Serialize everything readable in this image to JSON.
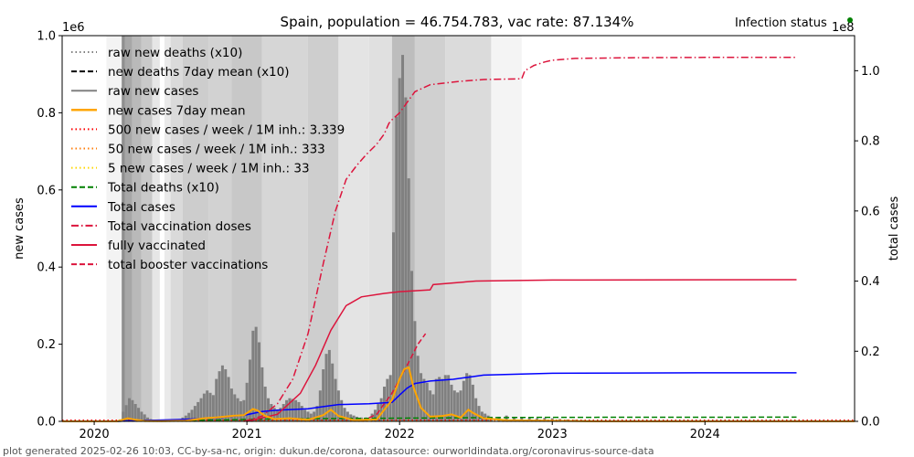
{
  "chart_data": {
    "type": "line",
    "title": "Spain, population = 46.754.783, vac rate: 87.134%",
    "ylabel_left": "new cases",
    "ylabel_right": "total cases",
    "left_scale_label": "1e6",
    "right_scale_label": "1e8",
    "ylim_left": [
      0,
      1000000
    ],
    "ylim_right": [
      0,
      110000000
    ],
    "xlim_years": [
      2019.79,
      2024.98
    ],
    "x_ticks": [
      2020,
      2021,
      2022,
      2023,
      2024
    ],
    "x_tick_labels": [
      "2020",
      "2021",
      "2022",
      "2023",
      "2024"
    ],
    "y_left_ticks": [
      0.0,
      0.2,
      0.4,
      0.6,
      0.8,
      1.0
    ],
    "y_left_tick_labels": [
      "0.0",
      "0.2",
      "0.4",
      "0.6",
      "0.8",
      "1.0"
    ],
    "y_right_ticks": [
      0.0,
      0.2,
      0.4,
      0.6,
      0.8,
      1.0
    ],
    "y_right_tick_labels": [
      "0.0",
      "0.2",
      "0.4",
      "0.6",
      "0.8",
      "1.0"
    ],
    "infection_status_label": "Infection status",
    "infection_status_color": "#008000",
    "legend": [
      {
        "label": "raw new deaths (x10)",
        "color": "#808080",
        "style": "dotted"
      },
      {
        "label": "new deaths 7day mean (x10)",
        "color": "#000000",
        "style": "dashed"
      },
      {
        "label": "raw new cases",
        "color": "#808080",
        "style": "solid"
      },
      {
        "label": "new cases 7day mean",
        "color": "#ffa500",
        "style": "solid"
      },
      {
        "label": "500 new cases / week / 1M inh.: 3.339",
        "color": "#ff0000",
        "style": "dotted"
      },
      {
        "label": "50 new cases / week / 1M inh.: 333",
        "color": "#ff7f0e",
        "style": "dotted"
      },
      {
        "label": "5 new cases / week / 1M inh.: 33",
        "color": "#ffd700",
        "style": "dotted"
      },
      {
        "label": "Total deaths (x10)",
        "color": "#008000",
        "style": "dashed"
      },
      {
        "label": "Total cases",
        "color": "#0000ff",
        "style": "solid"
      },
      {
        "label": "Total vaccination doses",
        "color": "#dc143c",
        "style": "dashdot"
      },
      {
        "label": "fully vaccinated",
        "color": "#dc143c",
        "style": "solid"
      },
      {
        "label": "total booster vaccinations",
        "color": "#dc143c",
        "style": "dashed"
      }
    ],
    "raw_new_cases_weekly": [
      [
        2020.17,
        5000
      ],
      [
        2020.19,
        25000
      ],
      [
        2020.21,
        42000
      ],
      [
        2020.23,
        60000
      ],
      [
        2020.25,
        55000
      ],
      [
        2020.27,
        45000
      ],
      [
        2020.29,
        35000
      ],
      [
        2020.31,
        25000
      ],
      [
        2020.33,
        18000
      ],
      [
        2020.35,
        10000
      ],
      [
        2020.37,
        6000
      ],
      [
        2020.4,
        3000
      ],
      [
        2020.44,
        2000
      ],
      [
        2020.48,
        2000
      ],
      [
        2020.52,
        3000
      ],
      [
        2020.56,
        6000
      ],
      [
        2020.58,
        10000
      ],
      [
        2020.6,
        15000
      ],
      [
        2020.62,
        22000
      ],
      [
        2020.64,
        30000
      ],
      [
        2020.66,
        40000
      ],
      [
        2020.68,
        50000
      ],
      [
        2020.7,
        60000
      ],
      [
        2020.72,
        72000
      ],
      [
        2020.74,
        80000
      ],
      [
        2020.76,
        74000
      ],
      [
        2020.78,
        68000
      ],
      [
        2020.8,
        110000
      ],
      [
        2020.82,
        130000
      ],
      [
        2020.84,
        145000
      ],
      [
        2020.86,
        135000
      ],
      [
        2020.88,
        115000
      ],
      [
        2020.9,
        85000
      ],
      [
        2020.92,
        70000
      ],
      [
        2020.94,
        60000
      ],
      [
        2020.96,
        52000
      ],
      [
        2020.98,
        55000
      ],
      [
        2021.0,
        100000
      ],
      [
        2021.02,
        160000
      ],
      [
        2021.04,
        235000
      ],
      [
        2021.06,
        245000
      ],
      [
        2021.08,
        205000
      ],
      [
        2021.1,
        140000
      ],
      [
        2021.12,
        90000
      ],
      [
        2021.14,
        60000
      ],
      [
        2021.16,
        45000
      ],
      [
        2021.18,
        35000
      ],
      [
        2021.2,
        30000
      ],
      [
        2021.22,
        35000
      ],
      [
        2021.24,
        45000
      ],
      [
        2021.26,
        55000
      ],
      [
        2021.28,
        60000
      ],
      [
        2021.3,
        58000
      ],
      [
        2021.32,
        55000
      ],
      [
        2021.34,
        50000
      ],
      [
        2021.36,
        40000
      ],
      [
        2021.38,
        30000
      ],
      [
        2021.4,
        25000
      ],
      [
        2021.42,
        20000
      ],
      [
        2021.44,
        25000
      ],
      [
        2021.46,
        40000
      ],
      [
        2021.48,
        80000
      ],
      [
        2021.5,
        135000
      ],
      [
        2021.52,
        175000
      ],
      [
        2021.54,
        185000
      ],
      [
        2021.56,
        150000
      ],
      [
        2021.58,
        110000
      ],
      [
        2021.6,
        80000
      ],
      [
        2021.62,
        55000
      ],
      [
        2021.64,
        35000
      ],
      [
        2021.66,
        25000
      ],
      [
        2021.68,
        18000
      ],
      [
        2021.7,
        15000
      ],
      [
        2021.72,
        12000
      ],
      [
        2021.75,
        10000
      ],
      [
        2021.78,
        10000
      ],
      [
        2021.82,
        20000
      ],
      [
        2021.84,
        30000
      ],
      [
        2021.86,
        45000
      ],
      [
        2021.88,
        60000
      ],
      [
        2021.9,
        90000
      ],
      [
        2021.92,
        110000
      ],
      [
        2021.94,
        120000
      ],
      [
        2021.96,
        490000
      ],
      [
        2021.98,
        790000
      ],
      [
        2022.0,
        890000
      ],
      [
        2022.02,
        950000
      ],
      [
        2022.04,
        840000
      ],
      [
        2022.06,
        630000
      ],
      [
        2022.08,
        390000
      ],
      [
        2022.1,
        260000
      ],
      [
        2022.12,
        170000
      ],
      [
        2022.14,
        125000
      ],
      [
        2022.16,
        110000
      ],
      [
        2022.18,
        100000
      ],
      [
        2022.2,
        80000
      ],
      [
        2022.22,
        70000
      ],
      [
        2022.24,
        110000
      ],
      [
        2022.26,
        115000
      ],
      [
        2022.28,
        110000
      ],
      [
        2022.3,
        120000
      ],
      [
        2022.32,
        120000
      ],
      [
        2022.34,
        95000
      ],
      [
        2022.36,
        80000
      ],
      [
        2022.38,
        75000
      ],
      [
        2022.4,
        80000
      ],
      [
        2022.42,
        105000
      ],
      [
        2022.44,
        125000
      ],
      [
        2022.46,
        120000
      ],
      [
        2022.48,
        95000
      ],
      [
        2022.5,
        60000
      ],
      [
        2022.52,
        40000
      ],
      [
        2022.54,
        25000
      ],
      [
        2022.56,
        20000
      ],
      [
        2022.58,
        15000
      ],
      [
        2022.6,
        12000
      ],
      [
        2022.65,
        12000
      ],
      [
        2022.7,
        15000
      ],
      [
        2022.75,
        12000
      ],
      [
        2022.8,
        10000
      ],
      [
        2022.85,
        10000
      ],
      [
        2022.9,
        8000
      ],
      [
        2022.95,
        9000
      ],
      [
        2023.0,
        8000
      ],
      [
        2023.05,
        6000
      ],
      [
        2023.1,
        5000
      ],
      [
        2023.15,
        4000
      ],
      [
        2023.2,
        3000
      ],
      [
        2023.25,
        2000
      ]
    ],
    "new_cases_7day_mean": [
      [
        2019.79,
        0
      ],
      [
        2020.15,
        0
      ],
      [
        2020.22,
        8000
      ],
      [
        2020.27,
        4000
      ],
      [
        2020.33,
        1000
      ],
      [
        2020.45,
        500
      ],
      [
        2020.6,
        2000
      ],
      [
        2020.72,
        8000
      ],
      [
        2020.8,
        10000
      ],
      [
        2020.9,
        14000
      ],
      [
        2020.98,
        16000
      ],
      [
        2021.04,
        32000
      ],
      [
        2021.07,
        28000
      ],
      [
        2021.12,
        14000
      ],
      [
        2021.18,
        6000
      ],
      [
        2021.28,
        8000
      ],
      [
        2021.4,
        4000
      ],
      [
        2021.5,
        16000
      ],
      [
        2021.55,
        30000
      ],
      [
        2021.6,
        14000
      ],
      [
        2021.7,
        3000
      ],
      [
        2021.85,
        5000
      ],
      [
        2021.95,
        55000
      ],
      [
        2022.0,
        110000
      ],
      [
        2022.03,
        135000
      ],
      [
        2022.06,
        140000
      ],
      [
        2022.09,
        90000
      ],
      [
        2022.14,
        35000
      ],
      [
        2022.2,
        12000
      ],
      [
        2022.28,
        14000
      ],
      [
        2022.34,
        18000
      ],
      [
        2022.4,
        10000
      ],
      [
        2022.45,
        30000
      ],
      [
        2022.48,
        22000
      ],
      [
        2022.55,
        8000
      ],
      [
        2022.7,
        3000
      ],
      [
        2023.0,
        1500
      ],
      [
        2023.3,
        0
      ],
      [
        2024.98,
        0
      ]
    ],
    "total_cases": [
      [
        2020.15,
        0
      ],
      [
        2020.25,
        200000
      ],
      [
        2020.4,
        300000
      ],
      [
        2020.6,
        600000
      ],
      [
        2020.8,
        1000000
      ],
      [
        2021.0,
        1900000
      ],
      [
        2021.1,
        2800000
      ],
      [
        2021.2,
        3200000
      ],
      [
        2021.4,
        3600000
      ],
      [
        2021.5,
        4200000
      ],
      [
        2021.6,
        4800000
      ],
      [
        2021.8,
        5000000
      ],
      [
        2021.95,
        5400000
      ],
      [
        2022.0,
        7500000
      ],
      [
        2022.05,
        9500000
      ],
      [
        2022.1,
        10800000
      ],
      [
        2022.2,
        11500000
      ],
      [
        2022.35,
        12000000
      ],
      [
        2022.45,
        12600000
      ],
      [
        2022.55,
        13200000
      ],
      [
        2022.8,
        13500000
      ],
      [
        2023.0,
        13700000
      ],
      [
        2023.5,
        13800000
      ],
      [
        2024.0,
        13850000
      ],
      [
        2024.6,
        13850000
      ]
    ],
    "total_deaths_x10": [
      [
        2020.15,
        0
      ],
      [
        2020.3,
        250000
      ],
      [
        2020.8,
        400000
      ],
      [
        2021.2,
        700000
      ],
      [
        2021.6,
        800000
      ],
      [
        2022.0,
        900000
      ],
      [
        2022.5,
        1050000
      ],
      [
        2023.0,
        1150000
      ],
      [
        2024.6,
        1200000
      ]
    ],
    "total_vaccination_doses": [
      [
        2020.98,
        0
      ],
      [
        2021.1,
        1500000
      ],
      [
        2021.2,
        5000000
      ],
      [
        2021.3,
        12000000
      ],
      [
        2021.4,
        25000000
      ],
      [
        2021.5,
        45000000
      ],
      [
        2021.58,
        60000000
      ],
      [
        2021.65,
        69000000
      ],
      [
        2021.72,
        73000000
      ],
      [
        2021.78,
        76000000
      ],
      [
        2021.85,
        79000000
      ],
      [
        2021.9,
        82000000
      ],
      [
        2021.93,
        85000000
      ],
      [
        2021.95,
        86000000
      ],
      [
        2022.0,
        88000000
      ],
      [
        2022.05,
        91000000
      ],
      [
        2022.1,
        94000000
      ],
      [
        2022.2,
        96000000
      ],
      [
        2022.4,
        97000000
      ],
      [
        2022.55,
        97500000
      ],
      [
        2022.8,
        97700000
      ],
      [
        2022.82,
        100000000
      ],
      [
        2022.88,
        101500000
      ],
      [
        2022.95,
        102500000
      ],
      [
        2023.0,
        103000000
      ],
      [
        2023.15,
        103500000
      ],
      [
        2023.5,
        103700000
      ],
      [
        2024.0,
        103800000
      ],
      [
        2024.6,
        103800000
      ]
    ],
    "fully_vaccinated": [
      [
        2021.0,
        0
      ],
      [
        2021.2,
        2000000
      ],
      [
        2021.35,
        8000000
      ],
      [
        2021.45,
        16000000
      ],
      [
        2021.55,
        26000000
      ],
      [
        2021.65,
        33000000
      ],
      [
        2021.75,
        35500000
      ],
      [
        2021.9,
        36500000
      ],
      [
        2022.0,
        37000000
      ],
      [
        2022.2,
        37500000
      ],
      [
        2022.22,
        39000000
      ],
      [
        2022.5,
        40000000
      ],
      [
        2023.0,
        40300000
      ],
      [
        2024.6,
        40400000
      ]
    ],
    "total_booster_vaccinations": [
      [
        2021.75,
        0
      ],
      [
        2021.85,
        2000000
      ],
      [
        2021.95,
        8000000
      ],
      [
        2022.05,
        16000000
      ],
      [
        2022.12,
        22000000
      ],
      [
        2022.17,
        25000000
      ]
    ],
    "status_bands": [
      [
        2020.08,
        2020.18,
        "#f3f3f3"
      ],
      [
        2020.18,
        2020.2,
        "#8f8f8f"
      ],
      [
        2020.2,
        2020.25,
        "#a7a7a7"
      ],
      [
        2020.25,
        2020.31,
        "#b9b9b9"
      ],
      [
        2020.31,
        2020.38,
        "#c9c9c9"
      ],
      [
        2020.38,
        2020.43,
        "#e6e6e6"
      ],
      [
        2020.43,
        2020.46,
        "#ffffff"
      ],
      [
        2020.46,
        2020.5,
        "#eaeaea"
      ],
      [
        2020.5,
        2020.58,
        "#dadada"
      ],
      [
        2020.58,
        2020.75,
        "#cdcdcd"
      ],
      [
        2020.75,
        2020.9,
        "#d2d2d2"
      ],
      [
        2020.9,
        2021.1,
        "#c8c8c8"
      ],
      [
        2021.1,
        2021.4,
        "#d6d6d6"
      ],
      [
        2021.4,
        2021.6,
        "#cecece"
      ],
      [
        2021.6,
        2021.8,
        "#e4e4e4"
      ],
      [
        2021.8,
        2021.95,
        "#e0e0e0"
      ],
      [
        2021.95,
        2022.1,
        "#bdbdbd"
      ],
      [
        2022.1,
        2022.3,
        "#d0d0d0"
      ],
      [
        2022.3,
        2022.6,
        "#dbdbdb"
      ],
      [
        2022.6,
        2022.8,
        "#f4f4f4"
      ]
    ],
    "threshold_lines": [
      {
        "label": "500 new cases / week / 1M inh.: 3.339",
        "value": 3339,
        "color": "#ff0000"
      },
      {
        "label": "50 new cases / week / 1M inh.: 333",
        "value": 333,
        "color": "#ff7f0e"
      },
      {
        "label": "5 new cases / week / 1M inh.: 33",
        "value": 33,
        "color": "#ffd700"
      }
    ]
  },
  "footer": "plot generated 2025-02-26 10:03, CC-by-sa-nc, origin: dukun.de/corona, datasource: ourworldindata.org/coronavirus-source-data"
}
